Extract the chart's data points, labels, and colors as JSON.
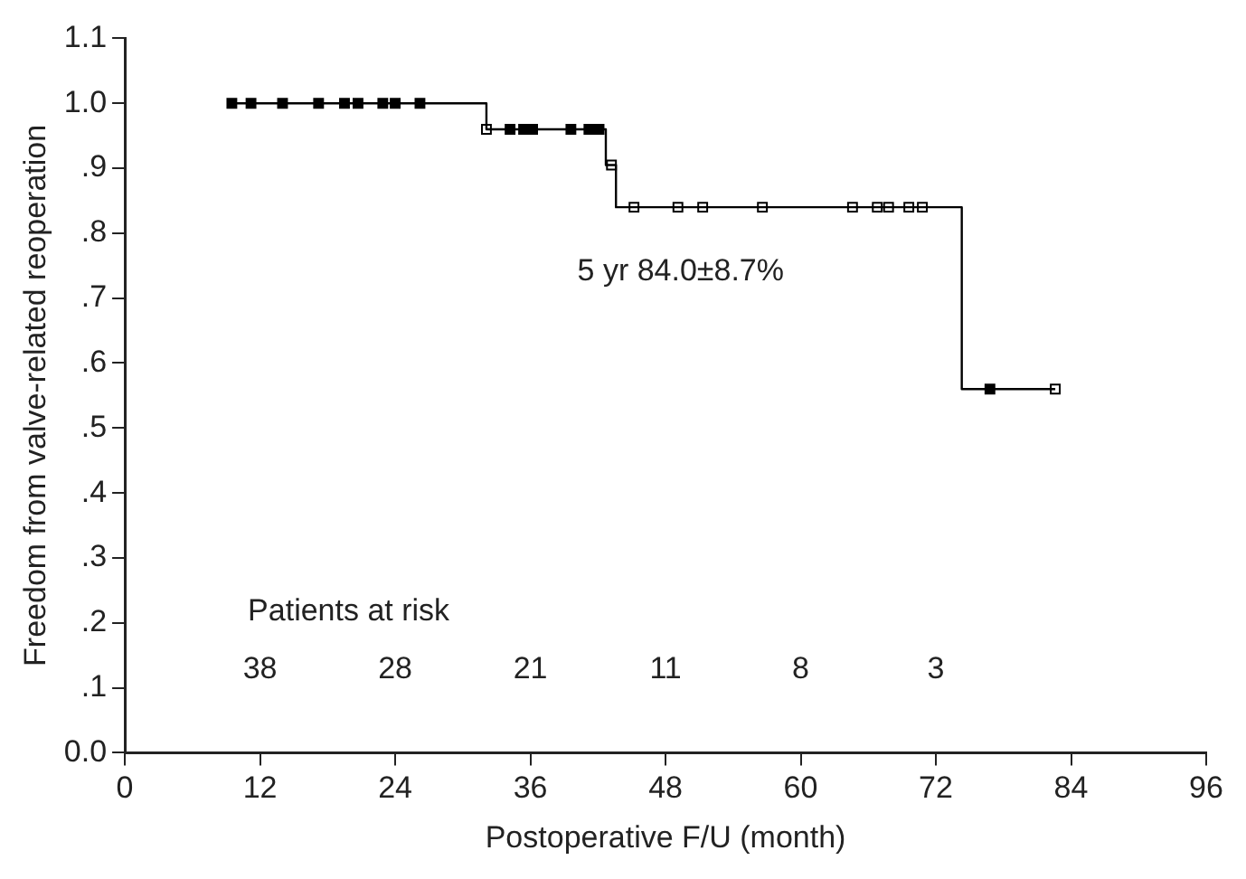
{
  "chart_data": {
    "type": "step",
    "xlabel": "Postoperative F/U (month)",
    "ylabel": "Freedom from valve-related reoperation",
    "xlim": [
      0,
      96
    ],
    "xticks": [
      0,
      12,
      24,
      36,
      48,
      60,
      72,
      84,
      96
    ],
    "ylim": [
      0,
      1.1
    ],
    "yticks": [
      {
        "value": 0,
        "label": "0.0"
      },
      {
        "value": 0.1,
        "label": ".1"
      },
      {
        "value": 0.2,
        "label": ".2"
      },
      {
        "value": 0.3,
        "label": ".3"
      },
      {
        "value": 0.4,
        "label": ".4"
      },
      {
        "value": 0.5,
        "label": ".5"
      },
      {
        "value": 0.6,
        "label": ".6"
      },
      {
        "value": 0.7,
        "label": ".7"
      },
      {
        "value": 0.8,
        "label": ".8"
      },
      {
        "value": 0.9,
        "label": ".9"
      },
      {
        "value": 1.0,
        "label": "1.0"
      },
      {
        "value": 1.1,
        "label": "1.1"
      }
    ],
    "grid": false,
    "line_style": "solid",
    "series": [
      {
        "type": "step",
        "color": "#000000",
        "marker": "none",
        "x": [
          9.2,
          32.1,
          42.7,
          43.6,
          74.3,
          82.6
        ],
        "values": [
          1,
          0.96,
          0.905,
          0.84,
          0.56,
          0.56
        ]
      },
      {
        "type": "scatter",
        "color": "#000000",
        "marker": "square",
        "x": [
          9.5,
          11.2,
          14.0,
          17.2,
          19.5,
          20.7,
          22.9,
          24.0,
          26.2,
          34.2,
          35.4,
          36.2,
          39.6,
          41.2,
          42.1,
          76.8
        ],
        "values": [
          1,
          1,
          1,
          1,
          1,
          1,
          1,
          1,
          1,
          0.96,
          0.96,
          0.96,
          0.96,
          0.96,
          0.96,
          0.56
        ]
      },
      {
        "type": "scatter",
        "color": "#ffffff",
        "marker": "square",
        "x": [
          32.1,
          43.2,
          45.2,
          49.1,
          51.3,
          56.6,
          64.6,
          66.8,
          67.8,
          69.6,
          70.8,
          82.6
        ],
        "values": [
          0.96,
          0.905,
          0.84,
          0.84,
          0.84,
          0.84,
          0.84,
          0.84,
          0.84,
          0.84,
          0.84,
          0.56
        ]
      }
    ],
    "annotations": [
      "5 yr 84.0±8.7%",
      "Patients at risk",
      "38",
      "28",
      "21",
      "11",
      "8",
      "3"
    ]
  }
}
